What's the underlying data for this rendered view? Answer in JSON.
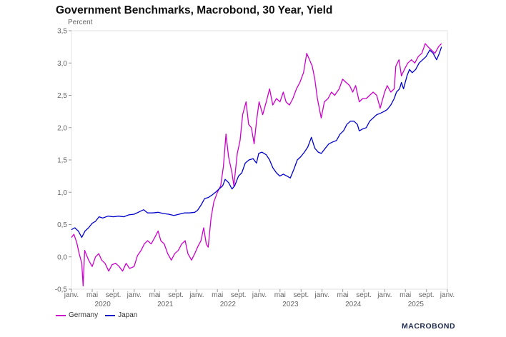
{
  "chart_data": {
    "type": "line",
    "title": "Government Benchmarks, Macrobond, 30 Year, Yield",
    "ylabel": "Percent",
    "ylim": [
      -0.5,
      3.5
    ],
    "yticks": [
      "-0,5",
      "0,0",
      "0,5",
      "1,0",
      "1,5",
      "2,0",
      "2,5",
      "3,0",
      "3,5"
    ],
    "xlim": [
      "2020-01-01",
      "2026-01-01"
    ],
    "xticks": [
      {
        "date": "2020-01-01",
        "label": "janv."
      },
      {
        "date": "2020-05-01",
        "label": "mai"
      },
      {
        "date": "2020-09-01",
        "label": "sept."
      },
      {
        "date": "2021-01-01",
        "label": "janv."
      },
      {
        "date": "2021-05-01",
        "label": "mai"
      },
      {
        "date": "2021-09-01",
        "label": "sept."
      },
      {
        "date": "2022-01-01",
        "label": "janv."
      },
      {
        "date": "2022-05-01",
        "label": "mai"
      },
      {
        "date": "2022-09-01",
        "label": "sept."
      },
      {
        "date": "2023-01-01",
        "label": "janv."
      },
      {
        "date": "2023-05-01",
        "label": "mai"
      },
      {
        "date": "2023-09-01",
        "label": "sept."
      },
      {
        "date": "2024-01-01",
        "label": "janv."
      },
      {
        "date": "2024-05-01",
        "label": "mai"
      },
      {
        "date": "2024-09-01",
        "label": "sept."
      },
      {
        "date": "2025-01-01",
        "label": "janv."
      },
      {
        "date": "2025-05-01",
        "label": "mai"
      },
      {
        "date": "2025-09-01",
        "label": "sept."
      },
      {
        "date": "2026-01-01",
        "label": "janv."
      }
    ],
    "years": [
      {
        "label": "2020",
        "date": "2020-07-01"
      },
      {
        "label": "2021",
        "date": "2021-07-01"
      },
      {
        "label": "2022",
        "date": "2022-07-01"
      },
      {
        "label": "2023",
        "date": "2023-07-01"
      },
      {
        "label": "2024",
        "date": "2024-07-01"
      },
      {
        "label": "2025",
        "date": "2025-07-01"
      }
    ],
    "grid": false,
    "legend_position": "bottom-left",
    "series": [
      {
        "name": "Germany",
        "color": "#cc00cc",
        "points": [
          [
            "2020-01-01",
            0.3
          ],
          [
            "2020-01-15",
            0.35
          ],
          [
            "2020-02-01",
            0.22
          ],
          [
            "2020-02-15",
            0.05
          ],
          [
            "2020-03-01",
            -0.1
          ],
          [
            "2020-03-09",
            -0.45
          ],
          [
            "2020-03-18",
            0.1
          ],
          [
            "2020-03-25",
            0.05
          ],
          [
            "2020-04-10",
            -0.05
          ],
          [
            "2020-05-01",
            -0.15
          ],
          [
            "2020-05-20",
            0.0
          ],
          [
            "2020-06-08",
            0.05
          ],
          [
            "2020-06-25",
            -0.05
          ],
          [
            "2020-07-15",
            -0.1
          ],
          [
            "2020-08-05",
            -0.22
          ],
          [
            "2020-08-25",
            -0.12
          ],
          [
            "2020-09-15",
            -0.1
          ],
          [
            "2020-10-05",
            -0.15
          ],
          [
            "2020-10-25",
            -0.22
          ],
          [
            "2020-11-15",
            -0.1
          ],
          [
            "2020-12-05",
            -0.18
          ],
          [
            "2020-12-31",
            -0.15
          ],
          [
            "2021-01-20",
            0.02
          ],
          [
            "2021-02-10",
            0.1
          ],
          [
            "2021-03-01",
            0.2
          ],
          [
            "2021-03-20",
            0.25
          ],
          [
            "2021-04-10",
            0.2
          ],
          [
            "2021-05-01",
            0.3
          ],
          [
            "2021-05-20",
            0.4
          ],
          [
            "2021-06-05",
            0.25
          ],
          [
            "2021-06-25",
            0.2
          ],
          [
            "2021-07-15",
            0.05
          ],
          [
            "2021-08-05",
            -0.05
          ],
          [
            "2021-08-25",
            0.05
          ],
          [
            "2021-09-15",
            0.1
          ],
          [
            "2021-10-05",
            0.2
          ],
          [
            "2021-10-25",
            0.25
          ],
          [
            "2021-11-10",
            0.05
          ],
          [
            "2021-12-01",
            -0.05
          ],
          [
            "2021-12-20",
            0.05
          ],
          [
            "2022-01-05",
            0.15
          ],
          [
            "2022-01-25",
            0.25
          ],
          [
            "2022-02-10",
            0.45
          ],
          [
            "2022-02-25",
            0.2
          ],
          [
            "2022-03-08",
            0.15
          ],
          [
            "2022-03-25",
            0.6
          ],
          [
            "2022-04-10",
            0.85
          ],
          [
            "2022-05-01",
            1.0
          ],
          [
            "2022-05-20",
            1.1
          ],
          [
            "2022-06-05",
            1.4
          ],
          [
            "2022-06-20",
            1.9
          ],
          [
            "2022-07-05",
            1.55
          ],
          [
            "2022-07-25",
            1.3
          ],
          [
            "2022-08-05",
            1.1
          ],
          [
            "2022-08-25",
            1.6
          ],
          [
            "2022-09-10",
            1.8
          ],
          [
            "2022-09-25",
            2.2
          ],
          [
            "2022-10-15",
            2.4
          ],
          [
            "2022-10-30",
            2.05
          ],
          [
            "2022-11-15",
            2.0
          ],
          [
            "2022-12-01",
            1.75
          ],
          [
            "2022-12-15",
            2.1
          ],
          [
            "2022-12-30",
            2.4
          ],
          [
            "2023-01-20",
            2.2
          ],
          [
            "2023-02-10",
            2.4
          ],
          [
            "2023-03-01",
            2.6
          ],
          [
            "2023-03-20",
            2.35
          ],
          [
            "2023-04-10",
            2.45
          ],
          [
            "2023-05-01",
            2.4
          ],
          [
            "2023-05-20",
            2.55
          ],
          [
            "2023-06-05",
            2.4
          ],
          [
            "2023-06-25",
            2.35
          ],
          [
            "2023-07-15",
            2.45
          ],
          [
            "2023-08-05",
            2.6
          ],
          [
            "2023-08-25",
            2.7
          ],
          [
            "2023-09-15",
            2.85
          ],
          [
            "2023-10-04",
            3.15
          ],
          [
            "2023-10-20",
            3.05
          ],
          [
            "2023-11-05",
            2.95
          ],
          [
            "2023-11-20",
            2.75
          ],
          [
            "2023-12-05",
            2.45
          ],
          [
            "2023-12-27",
            2.15
          ],
          [
            "2024-01-15",
            2.4
          ],
          [
            "2024-02-05",
            2.45
          ],
          [
            "2024-02-25",
            2.55
          ],
          [
            "2024-03-15",
            2.5
          ],
          [
            "2024-04-10",
            2.6
          ],
          [
            "2024-04-30",
            2.75
          ],
          [
            "2024-05-20",
            2.7
          ],
          [
            "2024-06-10",
            2.65
          ],
          [
            "2024-06-28",
            2.55
          ],
          [
            "2024-07-15",
            2.65
          ],
          [
            "2024-08-05",
            2.4
          ],
          [
            "2024-08-25",
            2.45
          ],
          [
            "2024-09-15",
            2.45
          ],
          [
            "2024-10-05",
            2.5
          ],
          [
            "2024-10-25",
            2.55
          ],
          [
            "2024-11-15",
            2.5
          ],
          [
            "2024-12-05",
            2.3
          ],
          [
            "2024-12-31",
            2.55
          ],
          [
            "2025-01-15",
            2.65
          ],
          [
            "2025-02-05",
            2.55
          ],
          [
            "2025-02-25",
            2.6
          ],
          [
            "2025-03-06",
            2.95
          ],
          [
            "2025-03-25",
            3.05
          ],
          [
            "2025-04-08",
            2.8
          ],
          [
            "2025-04-25",
            2.9
          ],
          [
            "2025-05-15",
            3.0
          ],
          [
            "2025-06-05",
            3.05
          ],
          [
            "2025-06-25",
            3.0
          ],
          [
            "2025-07-15",
            3.1
          ],
          [
            "2025-08-05",
            3.15
          ],
          [
            "2025-08-25",
            3.3
          ],
          [
            "2025-09-10",
            3.25
          ],
          [
            "2025-09-30",
            3.2
          ],
          [
            "2025-10-20",
            3.15
          ],
          [
            "2025-11-10",
            3.25
          ],
          [
            "2025-11-28",
            3.3
          ]
        ]
      },
      {
        "name": "Japan",
        "color": "#0000cc",
        "points": [
          [
            "2020-01-01",
            0.42
          ],
          [
            "2020-01-20",
            0.45
          ],
          [
            "2020-02-10",
            0.4
          ],
          [
            "2020-03-01",
            0.3
          ],
          [
            "2020-03-20",
            0.4
          ],
          [
            "2020-04-10",
            0.45
          ],
          [
            "2020-05-01",
            0.52
          ],
          [
            "2020-05-20",
            0.55
          ],
          [
            "2020-06-10",
            0.62
          ],
          [
            "2020-07-01",
            0.6
          ],
          [
            "2020-08-01",
            0.63
          ],
          [
            "2020-09-01",
            0.62
          ],
          [
            "2020-10-01",
            0.63
          ],
          [
            "2020-11-01",
            0.62
          ],
          [
            "2020-12-01",
            0.65
          ],
          [
            "2021-01-01",
            0.66
          ],
          [
            "2021-02-01",
            0.7
          ],
          [
            "2021-02-25",
            0.73
          ],
          [
            "2021-03-20",
            0.68
          ],
          [
            "2021-04-20",
            0.68
          ],
          [
            "2021-05-20",
            0.69
          ],
          [
            "2021-06-20",
            0.67
          ],
          [
            "2021-07-20",
            0.66
          ],
          [
            "2021-08-20",
            0.64
          ],
          [
            "2021-09-20",
            0.66
          ],
          [
            "2021-10-20",
            0.68
          ],
          [
            "2021-11-20",
            0.68
          ],
          [
            "2021-12-20",
            0.69
          ],
          [
            "2022-01-05",
            0.72
          ],
          [
            "2022-01-25",
            0.8
          ],
          [
            "2022-02-15",
            0.9
          ],
          [
            "2022-03-10",
            0.92
          ],
          [
            "2022-04-01",
            0.96
          ],
          [
            "2022-04-20",
            1.0
          ],
          [
            "2022-05-10",
            1.05
          ],
          [
            "2022-06-01",
            1.1
          ],
          [
            "2022-06-15",
            1.2
          ],
          [
            "2022-07-05",
            1.15
          ],
          [
            "2022-07-25",
            1.05
          ],
          [
            "2022-08-10",
            1.1
          ],
          [
            "2022-09-01",
            1.25
          ],
          [
            "2022-09-20",
            1.3
          ],
          [
            "2022-10-10",
            1.45
          ],
          [
            "2022-11-01",
            1.5
          ],
          [
            "2022-11-25",
            1.52
          ],
          [
            "2022-12-15",
            1.45
          ],
          [
            "2022-12-28",
            1.6
          ],
          [
            "2023-01-15",
            1.62
          ],
          [
            "2023-02-10",
            1.58
          ],
          [
            "2023-03-01",
            1.5
          ],
          [
            "2023-03-20",
            1.38
          ],
          [
            "2023-04-10",
            1.3
          ],
          [
            "2023-04-30",
            1.25
          ],
          [
            "2023-05-20",
            1.28
          ],
          [
            "2023-06-10",
            1.25
          ],
          [
            "2023-06-30",
            1.22
          ],
          [
            "2023-07-20",
            1.35
          ],
          [
            "2023-08-10",
            1.5
          ],
          [
            "2023-08-30",
            1.55
          ],
          [
            "2023-09-20",
            1.62
          ],
          [
            "2023-10-10",
            1.7
          ],
          [
            "2023-10-31",
            1.85
          ],
          [
            "2023-11-20",
            1.68
          ],
          [
            "2023-12-10",
            1.62
          ],
          [
            "2023-12-28",
            1.6
          ],
          [
            "2024-01-20",
            1.68
          ],
          [
            "2024-02-10",
            1.75
          ],
          [
            "2024-03-05",
            1.78
          ],
          [
            "2024-03-25",
            1.8
          ],
          [
            "2024-04-15",
            1.9
          ],
          [
            "2024-05-05",
            1.95
          ],
          [
            "2024-05-25",
            2.05
          ],
          [
            "2024-06-15",
            2.1
          ],
          [
            "2024-07-05",
            2.1
          ],
          [
            "2024-07-25",
            2.05
          ],
          [
            "2024-08-05",
            1.95
          ],
          [
            "2024-08-25",
            1.98
          ],
          [
            "2024-09-15",
            2.0
          ],
          [
            "2024-10-05",
            2.1
          ],
          [
            "2024-10-25",
            2.15
          ],
          [
            "2024-11-15",
            2.2
          ],
          [
            "2024-12-05",
            2.22
          ],
          [
            "2024-12-28",
            2.25
          ],
          [
            "2025-01-15",
            2.28
          ],
          [
            "2025-02-05",
            2.35
          ],
          [
            "2025-02-25",
            2.45
          ],
          [
            "2025-03-10",
            2.55
          ],
          [
            "2025-03-28",
            2.6
          ],
          [
            "2025-04-08",
            2.7
          ],
          [
            "2025-04-20",
            2.6
          ],
          [
            "2025-05-10",
            2.8
          ],
          [
            "2025-05-25",
            2.9
          ],
          [
            "2025-06-10",
            2.85
          ],
          [
            "2025-06-30",
            2.9
          ],
          [
            "2025-07-20",
            3.0
          ],
          [
            "2025-08-10",
            3.05
          ],
          [
            "2025-08-30",
            3.1
          ],
          [
            "2025-09-20",
            3.2
          ],
          [
            "2025-10-10",
            3.15
          ],
          [
            "2025-10-30",
            3.05
          ],
          [
            "2025-11-15",
            3.15
          ],
          [
            "2025-11-28",
            3.25
          ]
        ]
      }
    ]
  },
  "brand": "MACROBOND"
}
